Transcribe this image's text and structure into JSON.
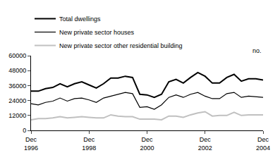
{
  "chart_data": {
    "type": "line",
    "ylabel": "no.",
    "categories": [
      "Dec 1996",
      null,
      null,
      null,
      null,
      null,
      null,
      null,
      "Dec 1998",
      null,
      null,
      null,
      null,
      null,
      null,
      null,
      "Dec 2000",
      null,
      null,
      null,
      null,
      null,
      null,
      null,
      "Dec 2002",
      null,
      null,
      null,
      null,
      null,
      null,
      null,
      "Dec 2004"
    ],
    "series": [
      {
        "name": "Total dwellings",
        "color": "#000000",
        "values": [
          31500,
          31500,
          33500,
          34500,
          37500,
          35000,
          37500,
          39000,
          36500,
          34000,
          37500,
          42000,
          42000,
          43500,
          42500,
          29000,
          28500,
          26500,
          29000,
          39000,
          41000,
          38000,
          42500,
          46500,
          43500,
          38000,
          38000,
          42500,
          45000,
          39500,
          41500,
          41500,
          40500
        ]
      },
      {
        "name": "New private sector houses",
        "color": "#000000",
        "values": [
          21500,
          20500,
          22500,
          23500,
          26000,
          23500,
          25500,
          26000,
          24500,
          22500,
          26000,
          27500,
          29000,
          30500,
          29500,
          18500,
          19000,
          17000,
          20500,
          26500,
          28500,
          26500,
          29000,
          30500,
          27500,
          25500,
          25500,
          29500,
          30500,
          26500,
          27500,
          27000,
          26500
        ]
      },
      {
        "name": "New private sector other residential building",
        "color": "#c0c0c0",
        "values": [
          8500,
          9500,
          9500,
          10000,
          11000,
          10000,
          10500,
          11000,
          10500,
          10000,
          10000,
          12500,
          11500,
          11000,
          11000,
          9000,
          9000,
          9000,
          8500,
          11500,
          11500,
          10500,
          12500,
          14000,
          15000,
          11500,
          12000,
          12000,
          14500,
          12000,
          12500,
          12500,
          12500
        ]
      }
    ],
    "ylim": [
      0,
      60000
    ],
    "yticks": [
      0,
      12000,
      24000,
      36000,
      48000,
      60000
    ],
    "grid": false,
    "legend": "upper left"
  }
}
